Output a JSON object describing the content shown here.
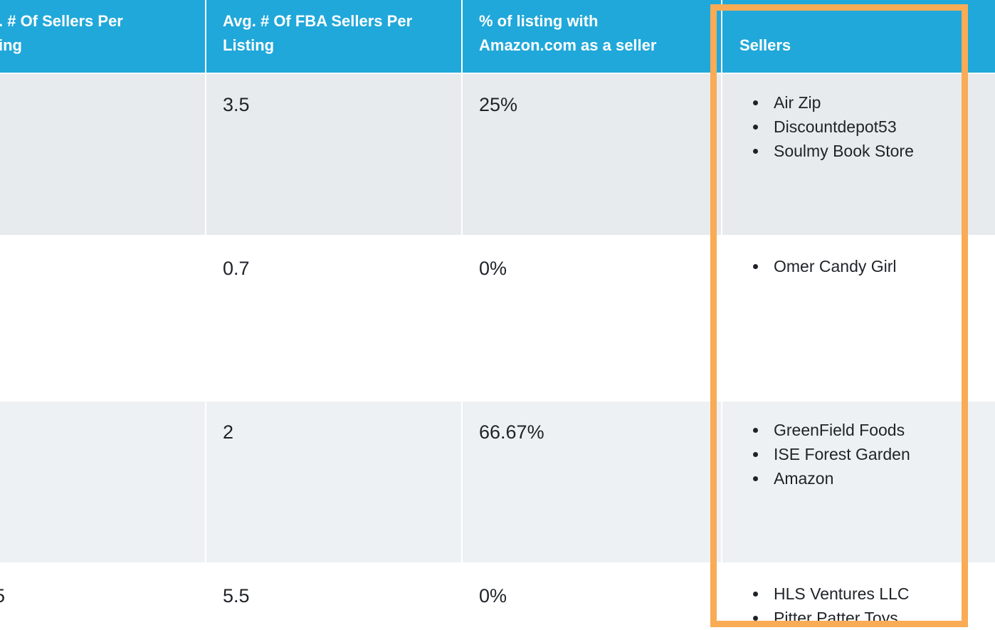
{
  "table": {
    "header": [
      {
        "lines": [
          ". # Of Sellers Per",
          "ing"
        ]
      },
      {
        "lines": [
          "Avg. # Of FBA Sellers Per",
          "Listing"
        ]
      },
      {
        "lines": [
          "% of listing with",
          "Amazon.com as a seller"
        ]
      },
      {
        "lines": [
          "Sellers"
        ]
      }
    ],
    "rows": [
      {
        "fba": "3.5",
        "amazon": "25%",
        "sellers": [
          "Air Zip",
          "Discountdepot53",
          "Soulmy Book Store"
        ]
      },
      {
        "fba": "0.7",
        "amazon": "0%",
        "sellers": [
          "Omer Candy Girl"
        ]
      },
      {
        "fba": "2",
        "amazon": "66.67%",
        "sellers": [
          "GreenField Foods",
          "ISE Forest Garden",
          "Amazon"
        ]
      },
      {
        "sellers_per": "5",
        "fba": "5.5",
        "amazon": "0%",
        "sellers": [
          "HLS Ventures LLC",
          "Pitter Patter Toys"
        ]
      }
    ]
  }
}
